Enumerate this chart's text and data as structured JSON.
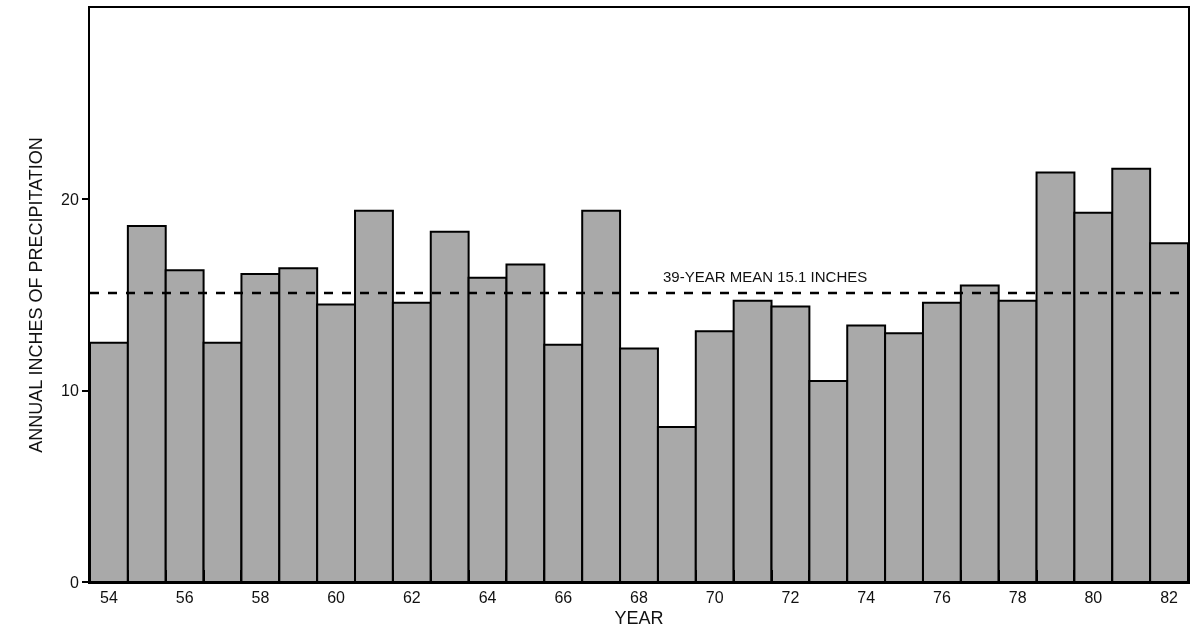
{
  "chart_data": {
    "type": "bar",
    "xlabel": "YEAR",
    "ylabel": "ANNUAL INCHES OF PRECIPITATION",
    "x": [
      54,
      55,
      56,
      57,
      58,
      59,
      60,
      61,
      62,
      63,
      64,
      65,
      66,
      67,
      68,
      69,
      70,
      71,
      72,
      73,
      74,
      75,
      76,
      77,
      78,
      79,
      80,
      81,
      82
    ],
    "values": [
      12.5,
      18.6,
      16.3,
      12.5,
      16.1,
      16.4,
      14.5,
      19.4,
      14.6,
      18.3,
      15.9,
      16.6,
      12.4,
      19.4,
      12.2,
      8.1,
      13.1,
      14.7,
      14.4,
      10.5,
      13.4,
      13.0,
      14.6,
      15.5,
      14.7,
      21.4,
      19.3,
      21.6,
      17.7
    ],
    "color": "#a9a9a9",
    "xlim": [
      53.5,
      82.5
    ],
    "xticks": [
      54,
      {
        "value": 54.5,
        "label": null
      },
      56,
      {
        "value": 55.5,
        "label": null
      },
      {
        "value": 56.5,
        "label": null
      },
      58,
      {
        "value": 57.5,
        "label": null
      },
      {
        "value": 58.5,
        "label": null
      },
      60,
      {
        "value": 59.5,
        "label": null
      },
      {
        "value": 60.5,
        "label": null
      },
      62,
      {
        "value": 61.5,
        "label": null
      },
      {
        "value": 62.5,
        "label": null
      },
      64,
      {
        "value": 63.5,
        "label": null
      },
      {
        "value": 64.5,
        "label": null
      },
      66,
      {
        "value": 65.5,
        "label": null
      },
      {
        "value": 66.5,
        "label": null
      },
      68,
      {
        "value": 67.5,
        "label": null
      },
      {
        "value": 68.5,
        "label": null
      },
      70,
      {
        "value": 69.5,
        "label": null
      },
      {
        "value": 70.5,
        "label": null
      },
      72,
      {
        "value": 71.5,
        "label": null
      },
      {
        "value": 72.5,
        "label": null
      },
      74,
      {
        "value": 73.5,
        "label": null
      },
      {
        "value": 74.5,
        "label": null
      },
      76,
      {
        "value": 75.5,
        "label": null
      },
      {
        "value": 76.5,
        "label": null
      },
      78,
      {
        "value": 77.5,
        "label": null
      },
      {
        "value": 78.5,
        "label": null
      },
      80,
      {
        "value": 79.5,
        "label": null
      },
      {
        "value": 80.5,
        "label": null
      },
      82,
      {
        "value": 81.5,
        "label": null
      }
    ],
    "ylim": [
      0,
      30
    ],
    "yticks": [
      0,
      10,
      20
    ],
    "ref_lines": [
      {
        "axis": "y",
        "value": 15.1,
        "label": "39-YEAR MEAN 15.1 INCHES",
        "line_style": "dashed"
      }
    ],
    "grid": false
  }
}
